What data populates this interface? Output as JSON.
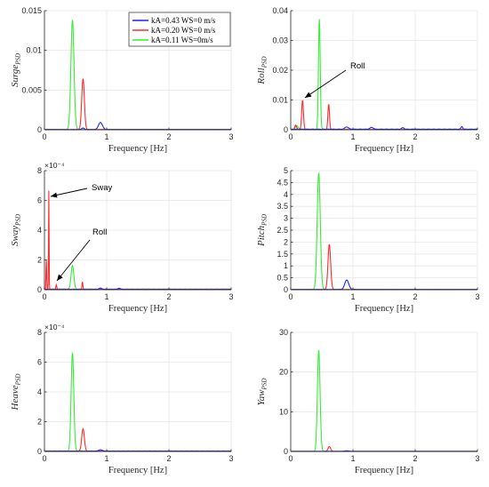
{
  "colors": {
    "blue": "#1f1fff",
    "red": "#ff2a2a",
    "green": "#33ee33",
    "axis": "#262626"
  },
  "legend": [
    {
      "label": "kA=0.43 WS=0 m/s",
      "color": "#1f1fff"
    },
    {
      "label": "kA=0.20 WS=0 m/s",
      "color": "#ff2a2a"
    },
    {
      "label": "kA=0.11 WS=0m/s",
      "color": "#33ee33"
    }
  ],
  "chart_data": [
    {
      "type": "line",
      "ylabel_main": "Surge",
      "ylabel_sub": "PSD",
      "xlabel": "Frequency [Hz]",
      "xlim": [
        0,
        3
      ],
      "ylim": [
        0,
        0.015
      ],
      "xticks": [
        "0",
        "1",
        "2",
        "3"
      ],
      "yticks": [
        "0",
        "0.005",
        "0.01",
        "0.015"
      ],
      "multiplier": "",
      "series": [
        {
          "color_key": "green",
          "peaks": [
            [
              0.45,
              0.0138,
              0.035
            ]
          ],
          "floor": 5e-05
        },
        {
          "color_key": "red",
          "peaks": [
            [
              0.62,
              0.0064,
              0.03
            ]
          ],
          "floor": 3e-05
        },
        {
          "color_key": "blue",
          "peaks": [
            [
              0.9,
              0.0009,
              0.045
            ],
            [
              0.62,
              0.0002,
              0.03
            ]
          ],
          "floor": 2e-05
        }
      ]
    },
    {
      "type": "line",
      "ylabel_main": "Roll",
      "ylabel_sub": "PSD",
      "xlabel": "Frequency [Hz]",
      "xlim": [
        0,
        3
      ],
      "ylim": [
        0,
        0.04
      ],
      "xticks": [
        "0",
        "1",
        "2",
        "3"
      ],
      "yticks": [
        "0",
        "0.01",
        "0.02",
        "0.03",
        "0.04"
      ],
      "multiplier": "",
      "annotation": {
        "text": "Roll",
        "x": 0.18,
        "y": 0.009
      },
      "series": [
        {
          "color_key": "green",
          "peaks": [
            [
              0.46,
              0.037,
              0.02
            ],
            [
              0.1,
              0.0012,
              0.03
            ]
          ],
          "floor": 0.0002
        },
        {
          "color_key": "red",
          "peaks": [
            [
              0.19,
              0.0098,
              0.02
            ],
            [
              0.61,
              0.0085,
              0.018
            ],
            [
              0.08,
              0.0015,
              0.02
            ]
          ],
          "floor": 0.0001
        },
        {
          "color_key": "blue",
          "peaks": [
            [
              0.9,
              0.0008,
              0.04
            ],
            [
              1.3,
              0.0006,
              0.04
            ],
            [
              1.8,
              0.0005,
              0.03
            ],
            [
              2.75,
              0.0009,
              0.02
            ]
          ],
          "floor": 0.0002
        }
      ]
    },
    {
      "type": "line",
      "ylabel_main": "Sway",
      "ylabel_sub": "PSD",
      "xlabel": "Frequency [Hz]",
      "xlim": [
        0,
        3
      ],
      "ylim": [
        0,
        0.0008
      ],
      "xticks": [
        "0",
        "1",
        "2",
        "3"
      ],
      "yticks": [
        "0",
        "2",
        "4",
        "6",
        "8"
      ],
      "multiplier": "×10⁻⁴",
      "annotations": [
        {
          "text": "Sway",
          "x": 0.08,
          "y": 0.00066
        },
        {
          "text": "Roll",
          "x": 0.18,
          "y": 2e-05
        }
      ],
      "series": [
        {
          "color_key": "green",
          "peaks": [
            [
              0.45,
              0.00016,
              0.03
            ]
          ],
          "floor": 5e-06
        },
        {
          "color_key": "red",
          "peaks": [
            [
              0.07,
              0.00066,
              0.006
            ],
            [
              0.03,
              0.0002,
              0.008
            ],
            [
              0.19,
              3e-05,
              0.01
            ],
            [
              0.61,
              5e-05,
              0.01
            ]
          ],
          "floor": 4e-06
        },
        {
          "color_key": "blue",
          "peaks": [
            [
              0.9,
              1e-05,
              0.03
            ],
            [
              1.2,
              8e-06,
              0.03
            ]
          ],
          "floor": 2e-06
        }
      ]
    },
    {
      "type": "line",
      "ylabel_main": "Pitch",
      "ylabel_sub": "PSD",
      "xlabel": "Frequency [Hz]",
      "xlim": [
        0,
        3
      ],
      "ylim": [
        0,
        5
      ],
      "xticks": [
        "0",
        "1",
        "2",
        "3"
      ],
      "yticks": [
        "0",
        "0.5",
        "1",
        "1.5",
        "2",
        "2.5",
        "3",
        "3.5",
        "4",
        "4.5",
        "5"
      ],
      "multiplier": "",
      "series": [
        {
          "color_key": "green",
          "peaks": [
            [
              0.45,
              4.9,
              0.035
            ]
          ],
          "floor": 0.01
        },
        {
          "color_key": "red",
          "peaks": [
            [
              0.62,
              1.9,
              0.03
            ]
          ],
          "floor": 0.01
        },
        {
          "color_key": "blue",
          "peaks": [
            [
              0.9,
              0.4,
              0.045
            ]
          ],
          "floor": 0.01
        }
      ]
    },
    {
      "type": "line",
      "ylabel_main": "Heave",
      "ylabel_sub": "PSD",
      "xlabel": "Frequency [Hz]",
      "xlim": [
        0,
        3
      ],
      "ylim": [
        0,
        0.0008
      ],
      "xticks": [
        "0",
        "1",
        "2",
        "3"
      ],
      "yticks": [
        "0",
        "2",
        "4",
        "6",
        "8"
      ],
      "multiplier": "×10⁻⁴",
      "series": [
        {
          "color_key": "green",
          "peaks": [
            [
              0.45,
              0.00066,
              0.03
            ]
          ],
          "floor": 4e-06
        },
        {
          "color_key": "red",
          "peaks": [
            [
              0.62,
              0.00015,
              0.03
            ]
          ],
          "floor": 3e-06
        },
        {
          "color_key": "blue",
          "peaks": [
            [
              0.9,
              1e-05,
              0.04
            ]
          ],
          "floor": 2e-06
        }
      ]
    },
    {
      "type": "line",
      "ylabel_main": "Yaw",
      "ylabel_sub": "PSD",
      "xlabel": "Frequency [Hz]",
      "xlim": [
        0,
        3
      ],
      "ylim": [
        0,
        30
      ],
      "xticks": [
        "0",
        "1",
        "2",
        "3"
      ],
      "yticks": [
        "0",
        "10",
        "20",
        "30"
      ],
      "multiplier": "",
      "series": [
        {
          "color_key": "green",
          "peaks": [
            [
              0.45,
              25.5,
              0.03
            ]
          ],
          "floor": 0.05
        },
        {
          "color_key": "red",
          "peaks": [
            [
              0.62,
              1.2,
              0.03
            ]
          ],
          "floor": 0.03
        },
        {
          "color_key": "blue",
          "peaks": [
            [
              0.9,
              0.15,
              0.04
            ]
          ],
          "floor": 0.02
        }
      ]
    }
  ]
}
